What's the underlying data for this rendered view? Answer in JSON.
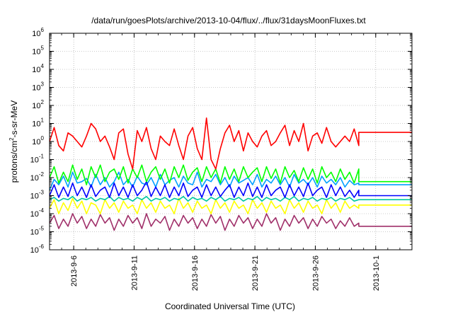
{
  "chart_data": {
    "type": "line",
    "title": "/data/run/goesPlots/archive/2013-10-04/flux/../flux/31daysMoonFluxes.txt",
    "xlabel": "Coordinated Universal Time (UTC)",
    "ylabel": {
      "prefix": "protons/cm",
      "sup": "2",
      "suffix": "-s-sr-MeV"
    },
    "y_scale": "log",
    "ylim": [
      1e-06,
      1000000.0
    ],
    "y_ticks": [
      {
        "value": 1e-06,
        "base": "10",
        "exp": "-6"
      },
      {
        "value": 1e-05,
        "base": "10",
        "exp": "-5"
      },
      {
        "value": 0.0001,
        "base": "10",
        "exp": "-4"
      },
      {
        "value": 0.001,
        "base": "10",
        "exp": "-3"
      },
      {
        "value": 0.01,
        "base": "10",
        "exp": "-2"
      },
      {
        "value": 0.1,
        "base": "10",
        "exp": "-1"
      },
      {
        "value": 1,
        "base": "10",
        "exp": "0"
      },
      {
        "value": 10,
        "base": "10",
        "exp": "1"
      },
      {
        "value": 100,
        "base": "10",
        "exp": "2"
      },
      {
        "value": 1000,
        "base": "10",
        "exp": "3"
      },
      {
        "value": 10000,
        "base": "10",
        "exp": "4"
      },
      {
        "value": 100000,
        "base": "10",
        "exp": "5"
      },
      {
        "value": 1000000,
        "base": "10",
        "exp": "6"
      }
    ],
    "xlim": [
      "2013-09-04",
      "2013-10-04"
    ],
    "x_ticks": [
      "2013-9-6",
      "2013-9-11",
      "2013-9-16",
      "2013-9-21",
      "2013-9-26",
      "2013-10-1"
    ],
    "grid": true,
    "legend": "none",
    "data_end": "2013-09-29.6",
    "series": [
      {
        "color": "#ff0000",
        "level_after_end": 3.2,
        "values": [
          1.0,
          6.0,
          0.6,
          0.3,
          3.0,
          2.0,
          1.0,
          0.5,
          2.0,
          10,
          5.0,
          1.0,
          2.0,
          0.5,
          0.1,
          3.0,
          5.0,
          0.2,
          0.03,
          4.0,
          1.0,
          6.0,
          0.4,
          0.1,
          2.0,
          1.0,
          0.6,
          5.0,
          0.6,
          0.1,
          2.0,
          6.0,
          0.4,
          0.1,
          20,
          0.1,
          0.03,
          0.4,
          3.0,
          8.0,
          1.0,
          4.0,
          0.3,
          3.0,
          1.0,
          0.5,
          2.0,
          4.0,
          0.6,
          1.0,
          3.0,
          8.0,
          0.6,
          4.0,
          1.0,
          10,
          0.3,
          2.0,
          3.0,
          0.8,
          6.0,
          1.0,
          0.5,
          1.0,
          2.0,
          1.0,
          5.0,
          0.6
        ]
      },
      {
        "color": "#00ff00",
        "level_after_end": 0.006,
        "values": [
          0.01,
          0.04,
          0.005,
          0.02,
          0.006,
          0.05,
          0.008,
          0.03,
          0.004,
          0.04,
          0.01,
          0.05,
          0.006,
          0.02,
          0.03,
          0.008,
          0.04,
          0.005,
          0.03,
          0.01,
          0.05,
          0.006,
          0.02,
          0.04,
          0.008,
          0.03,
          0.005,
          0.04,
          0.01,
          0.05,
          0.007,
          0.02,
          0.035,
          0.006,
          0.04,
          0.01,
          0.03,
          0.005,
          0.04,
          0.008,
          0.03,
          0.006,
          0.04,
          0.01,
          0.02,
          0.035,
          0.006,
          0.04,
          0.009,
          0.03,
          0.005,
          0.04,
          0.01,
          0.025,
          0.006,
          0.035,
          0.008,
          0.03,
          0.005,
          0.04,
          0.01,
          0.02,
          0.006,
          0.03,
          0.008,
          0.02,
          0.005,
          0.03
        ]
      },
      {
        "color": "#0000ff",
        "level_after_end": 0.001,
        "values": [
          0.001,
          0.004,
          0.0008,
          0.003,
          0.0009,
          0.005,
          0.001,
          0.003,
          0.0008,
          0.004,
          0.0009,
          0.002,
          0.003,
          0.0008,
          0.005,
          0.001,
          0.003,
          0.0008,
          0.004,
          0.001,
          0.002,
          0.006,
          0.0009,
          0.003,
          0.001,
          0.004,
          0.0008,
          0.003,
          0.001,
          0.005,
          0.0009,
          0.002,
          0.003,
          0.0008,
          0.004,
          0.001,
          0.003,
          0.0009,
          0.002,
          0.004,
          0.0008,
          0.003,
          0.001,
          0.005,
          0.0009,
          0.003,
          0.0008,
          0.004,
          0.001,
          0.002,
          0.003,
          0.0008,
          0.004,
          0.001,
          0.003,
          0.0009,
          0.005,
          0.001,
          0.002,
          0.003,
          0.0008,
          0.004,
          0.001,
          0.003,
          0.0009,
          0.002,
          0.0008,
          0.002
        ]
      },
      {
        "color": "#00a0ff",
        "level_after_end": 0.004,
        "values": [
          0.002,
          0.008,
          0.004,
          0.012,
          0.003,
          0.02,
          0.005,
          0.006,
          0.009,
          0.003,
          0.015,
          0.004,
          0.01,
          0.003,
          0.006,
          0.02,
          0.004,
          0.008,
          0.003,
          0.012,
          0.005,
          0.004,
          0.01,
          0.003,
          0.015,
          0.004,
          0.007,
          0.01,
          0.003,
          0.012,
          0.005,
          0.004,
          0.02,
          0.003,
          0.008,
          0.006,
          0.015,
          0.004,
          0.01,
          0.003,
          0.012,
          0.005,
          0.007,
          0.01,
          0.004,
          0.015,
          0.003,
          0.008,
          0.005,
          0.012,
          0.004,
          0.01,
          0.003,
          0.015,
          0.005,
          0.008,
          0.004,
          0.01,
          0.003,
          0.012,
          0.005,
          0.008,
          0.004,
          0.01,
          0.003,
          0.007,
          0.004,
          0.005
        ]
      },
      {
        "color": "#00c8a0",
        "level_after_end": 0.0006,
        "values": [
          0.0006,
          0.0008,
          0.0005,
          0.0007,
          0.0006,
          0.0009,
          0.0005,
          0.0007,
          0.0006,
          0.0008,
          0.0005,
          0.0007,
          0.0006,
          0.0009,
          0.0005,
          0.0008,
          0.0006,
          0.0007,
          0.0005,
          0.0008,
          0.0006,
          0.0009,
          0.0005,
          0.0007,
          0.0006,
          0.0008,
          0.0005,
          0.0007,
          0.0006,
          0.0009,
          0.0005,
          0.0008,
          0.0006,
          0.0007,
          0.0005,
          0.0008,
          0.0006,
          0.0009,
          0.0005,
          0.0007,
          0.0006,
          0.0008,
          0.0005,
          0.0007,
          0.0006,
          0.0009,
          0.0005,
          0.0008,
          0.0006,
          0.0007,
          0.0005,
          0.0008,
          0.0006,
          0.0009,
          0.0005,
          0.0007,
          0.0006,
          0.0008,
          0.0005,
          0.0007,
          0.0006,
          0.0008,
          0.0005,
          0.0007,
          0.0006,
          0.0008,
          0.0005,
          0.0006
        ]
      },
      {
        "color": "#ffff00",
        "level_after_end": 0.0003,
        "values": [
          0.0002,
          0.0006,
          0.0001,
          0.0004,
          0.00015,
          0.0007,
          0.0002,
          0.0005,
          0.0001,
          0.0004,
          0.0003,
          0.0001,
          0.0006,
          0.0002,
          0.0004,
          0.00012,
          0.0005,
          0.0002,
          0.0003,
          0.0001,
          0.0006,
          0.0002,
          0.0004,
          0.00012,
          0.0005,
          0.0002,
          0.0003,
          0.0001,
          0.0007,
          0.0002,
          0.0004,
          0.00012,
          0.0005,
          0.0002,
          0.0003,
          0.0001,
          0.0006,
          0.0002,
          0.0004,
          0.00012,
          0.0005,
          0.0002,
          0.0003,
          0.0001,
          0.0006,
          0.0002,
          0.0004,
          0.00012,
          0.0005,
          0.0002,
          0.0003,
          0.0001,
          0.0006,
          0.0002,
          0.0004,
          0.00012,
          0.0005,
          0.0002,
          0.0003,
          0.0001,
          0.0006,
          0.0002,
          0.0004,
          0.00012,
          0.0005,
          0.0002,
          0.0003,
          0.0002
        ]
      },
      {
        "color": "#a0306a",
        "level_after_end": 2e-05,
        "values": [
          3e-05,
          8e-05,
          1.5e-05,
          5e-05,
          2e-05,
          0.0001,
          3e-05,
          7e-05,
          1.5e-05,
          5e-05,
          2e-05,
          9e-05,
          3e-05,
          6e-05,
          1.2e-05,
          5e-05,
          2e-05,
          8e-05,
          3e-05,
          6e-05,
          1.5e-05,
          0.0001,
          2e-05,
          5e-05,
          3e-05,
          7e-05,
          1.2e-05,
          5e-05,
          2e-05,
          8e-05,
          3e-05,
          6e-05,
          1.5e-05,
          5e-05,
          2e-05,
          9e-05,
          3e-05,
          7e-05,
          1.2e-05,
          5e-05,
          2e-05,
          8e-05,
          3e-05,
          6e-05,
          1.5e-05,
          5e-05,
          2e-05,
          0.0001,
          3e-05,
          6e-05,
          1.2e-05,
          5e-05,
          2e-05,
          8e-05,
          3e-05,
          6e-05,
          1.5e-05,
          5e-05,
          2e-05,
          7e-05,
          3e-05,
          5e-05,
          1.5e-05,
          4e-05,
          2e-05,
          6e-05,
          2e-05,
          3e-05
        ]
      }
    ]
  }
}
